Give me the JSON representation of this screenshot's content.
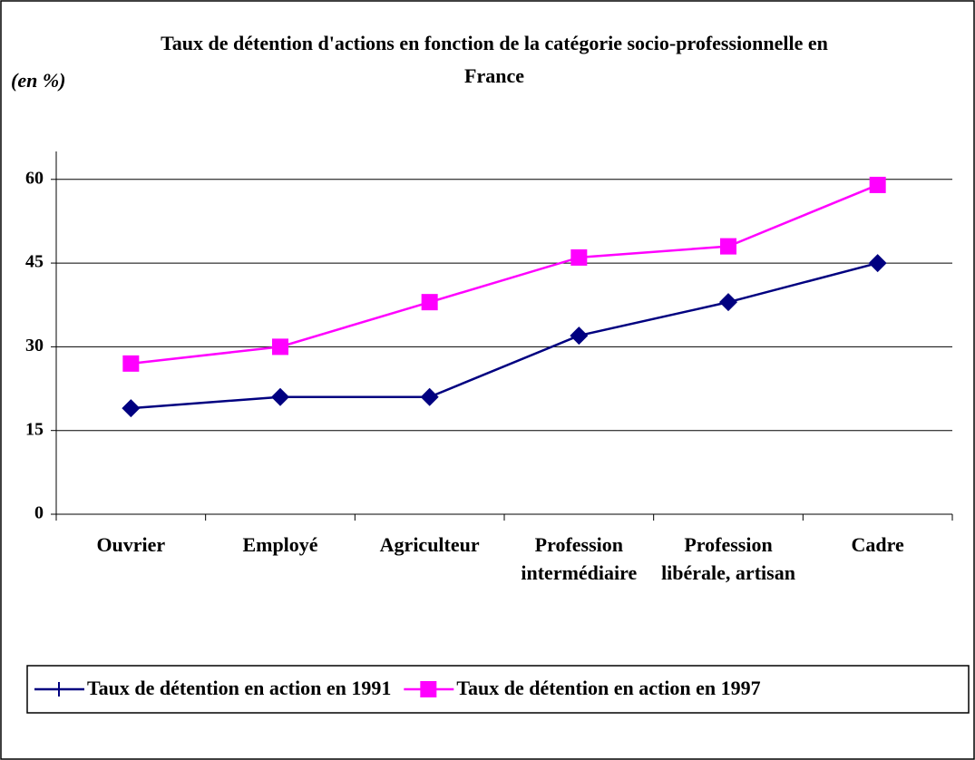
{
  "chart_data": {
    "type": "line",
    "title": "Taux de détention d'actions en fonction de la catégorie socio-professionnelle en France",
    "y_label": "(en  %)",
    "categories": [
      "Ouvrier",
      "Employé",
      "Agriculteur",
      "Profession intermédiaire",
      "Profession libérale, artisan",
      "Cadre"
    ],
    "series": [
      {
        "name": "Taux de détention en action en 1991",
        "color": "#000080",
        "marker": "diamond",
        "values": [
          19,
          21,
          21,
          32,
          38,
          45
        ]
      },
      {
        "name": "Taux de détention en action en 1997",
        "color": "#ff00ff",
        "marker": "square",
        "values": [
          27,
          30,
          38,
          46,
          48,
          59
        ]
      }
    ],
    "ylim": [
      0,
      65
    ],
    "yticks": [
      0,
      15,
      30,
      45,
      60
    ],
    "grid": true,
    "legend": "bottom"
  }
}
